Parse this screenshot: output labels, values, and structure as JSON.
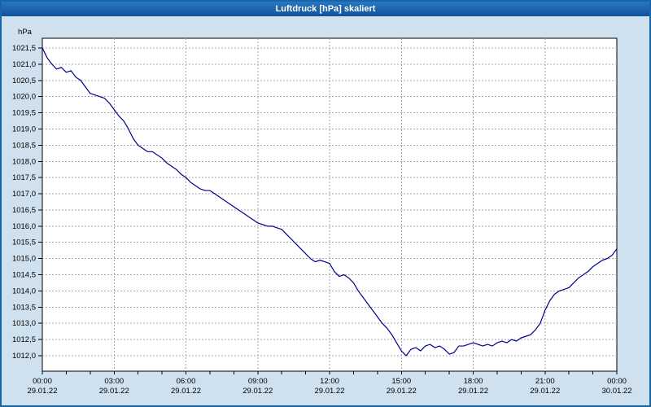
{
  "window": {
    "title": "Luftdruck [hPa] skaliert"
  },
  "colors": {
    "titlebar": "#1565ac",
    "window_border": "#1565ac",
    "window_bg": "#cfe0ee",
    "plot_bg": "#ffffff",
    "grid": "#a6a6a6",
    "axis": "#000000",
    "line": "#00008b",
    "label_text": "#000000",
    "title_text": "#ffffff"
  },
  "chart_data": {
    "type": "line",
    "title": "Luftdruck [hPa] skaliert",
    "ylabel": "hPa",
    "xlabel": "",
    "ylim": [
      1011.6,
      1021.8
    ],
    "xlim_hours": [
      0,
      24
    ],
    "grid": "dashed",
    "legend": "none",
    "y_ticks": {
      "values": [
        1021.5,
        1021.0,
        1020.5,
        1020.0,
        1019.5,
        1019.0,
        1018.5,
        1018.0,
        1017.5,
        1017.0,
        1016.5,
        1016.0,
        1015.5,
        1015.0,
        1014.5,
        1014.0,
        1013.5,
        1013.0,
        1012.5,
        1012.0
      ],
      "labels": [
        "1021,5",
        "1021,0",
        "1020,5",
        "1020,0",
        "1019,5",
        "1019,0",
        "1018,5",
        "1018,0",
        "1017,5",
        "1017,0",
        "1016,5",
        "1016,0",
        "1015,5",
        "1015,0",
        "1014,5",
        "1014,0",
        "1013,5",
        "1013,0",
        "1012,5",
        "1012,0"
      ]
    },
    "x_ticks": [
      {
        "hour": 0,
        "time": "00:00",
        "date": "29.01.22"
      },
      {
        "hour": 3,
        "time": "03:00",
        "date": "29.01.22"
      },
      {
        "hour": 6,
        "time": "06:00",
        "date": "29.01.22"
      },
      {
        "hour": 9,
        "time": "09:00",
        "date": "29.01.22"
      },
      {
        "hour": 12,
        "time": "12:00",
        "date": "29.01.22"
      },
      {
        "hour": 15,
        "time": "15:00",
        "date": "29.01.22"
      },
      {
        "hour": 18,
        "time": "18:00",
        "date": "29.01.22"
      },
      {
        "hour": 21,
        "time": "21:00",
        "date": "29.01.22"
      },
      {
        "hour": 24,
        "time": "00:00",
        "date": "30.01.22"
      }
    ],
    "series": [
      {
        "name": "Luftdruck",
        "x_start_hour": 0,
        "x_step_hours": 0.2,
        "values": [
          1021.5,
          1021.2,
          1021.0,
          1020.85,
          1020.9,
          1020.75,
          1020.8,
          1020.6,
          1020.5,
          1020.3,
          1020.1,
          1020.05,
          1020.0,
          1019.95,
          1019.8,
          1019.6,
          1019.4,
          1019.25,
          1019.0,
          1018.7,
          1018.5,
          1018.4,
          1018.3,
          1018.3,
          1018.2,
          1018.1,
          1017.95,
          1017.85,
          1017.75,
          1017.6,
          1017.5,
          1017.35,
          1017.25,
          1017.15,
          1017.1,
          1017.1,
          1017.0,
          1016.9,
          1016.8,
          1016.7,
          1016.6,
          1016.5,
          1016.4,
          1016.3,
          1016.2,
          1016.1,
          1016.05,
          1016.0,
          1016.0,
          1015.95,
          1015.9,
          1015.75,
          1015.6,
          1015.45,
          1015.3,
          1015.15,
          1015.0,
          1014.9,
          1014.95,
          1014.9,
          1014.85,
          1014.6,
          1014.45,
          1014.5,
          1014.4,
          1014.25,
          1014.0,
          1013.8,
          1013.6,
          1013.4,
          1013.2,
          1013.0,
          1012.85,
          1012.65,
          1012.4,
          1012.15,
          1012.0,
          1012.2,
          1012.25,
          1012.15,
          1012.3,
          1012.35,
          1012.25,
          1012.3,
          1012.2,
          1012.05,
          1012.1,
          1012.3,
          1012.3,
          1012.35,
          1012.4,
          1012.35,
          1012.3,
          1012.35,
          1012.3,
          1012.4,
          1012.45,
          1012.4,
          1012.5,
          1012.45,
          1012.55,
          1012.6,
          1012.65,
          1012.8,
          1013.0,
          1013.4,
          1013.7,
          1013.9,
          1014.0,
          1014.05,
          1014.1,
          1014.25,
          1014.4,
          1014.5,
          1014.6,
          1014.75,
          1014.85,
          1014.95,
          1015.0,
          1015.1,
          1015.3
        ]
      }
    ]
  }
}
